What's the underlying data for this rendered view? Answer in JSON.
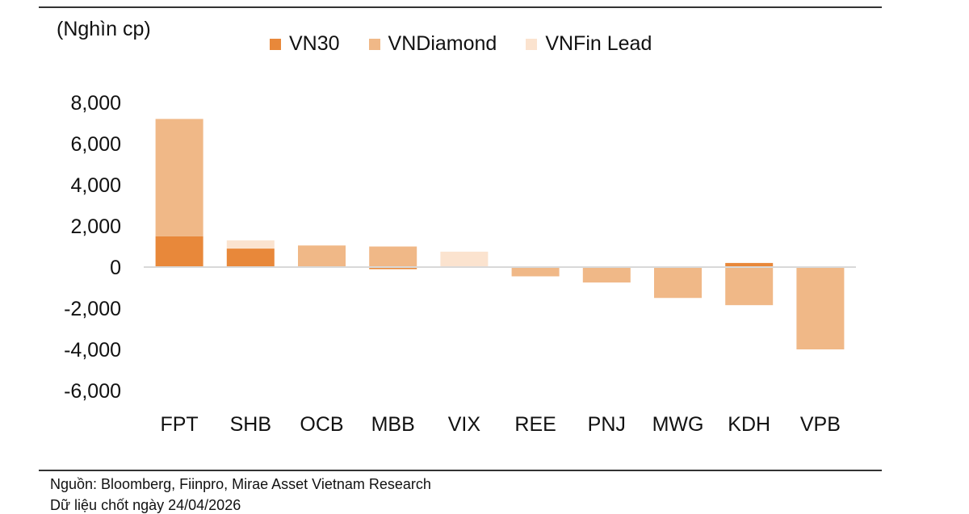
{
  "header": {
    "unit_label": "(Nghìn cp)"
  },
  "legend": {
    "items": [
      {
        "label": "VN30",
        "color": "#E8883A"
      },
      {
        "label": "VNDiamond",
        "color": "#F0B887"
      },
      {
        "label": "VNFin Lead",
        "color": "#FBE3CF"
      }
    ]
  },
  "chart_data": {
    "type": "bar",
    "stacked": true,
    "categories": [
      "FPT",
      "SHB",
      "OCB",
      "MBB",
      "VIX",
      "REE",
      "PNJ",
      "MWG",
      "KDH",
      "VPB"
    ],
    "series": [
      {
        "name": "VN30",
        "color": "#E8883A",
        "values": [
          1500,
          900,
          0,
          -100,
          0,
          0,
          0,
          0,
          200,
          0
        ]
      },
      {
        "name": "VNDiamond",
        "color": "#F0B887",
        "values": [
          5700,
          0,
          1050,
          1000,
          0,
          -450,
          -750,
          -1500,
          -1850,
          -4000
        ]
      },
      {
        "name": "VNFin Lead",
        "color": "#FBE3CF",
        "values": [
          0,
          400,
          0,
          0,
          750,
          0,
          0,
          0,
          0,
          0
        ]
      }
    ],
    "yticks": [
      "8,000",
      "6,000",
      "4,000",
      "2,000",
      "0",
      "-2,000",
      "-4,000",
      "-6,000"
    ],
    "ytick_values": [
      8000,
      6000,
      4000,
      2000,
      0,
      -2000,
      -4000,
      -6000
    ],
    "ylim": [
      -6000,
      8000
    ],
    "ylabel": "(Nghìn cp)",
    "xlabel": "",
    "title": "",
    "legend_position": "top",
    "grid": false
  },
  "footer": {
    "source": "Nguồn: Bloomberg, Fiinpro, Mirae Asset Vietnam Research",
    "cutoff": "Dữ liệu chốt ngày 24/04/2026"
  }
}
